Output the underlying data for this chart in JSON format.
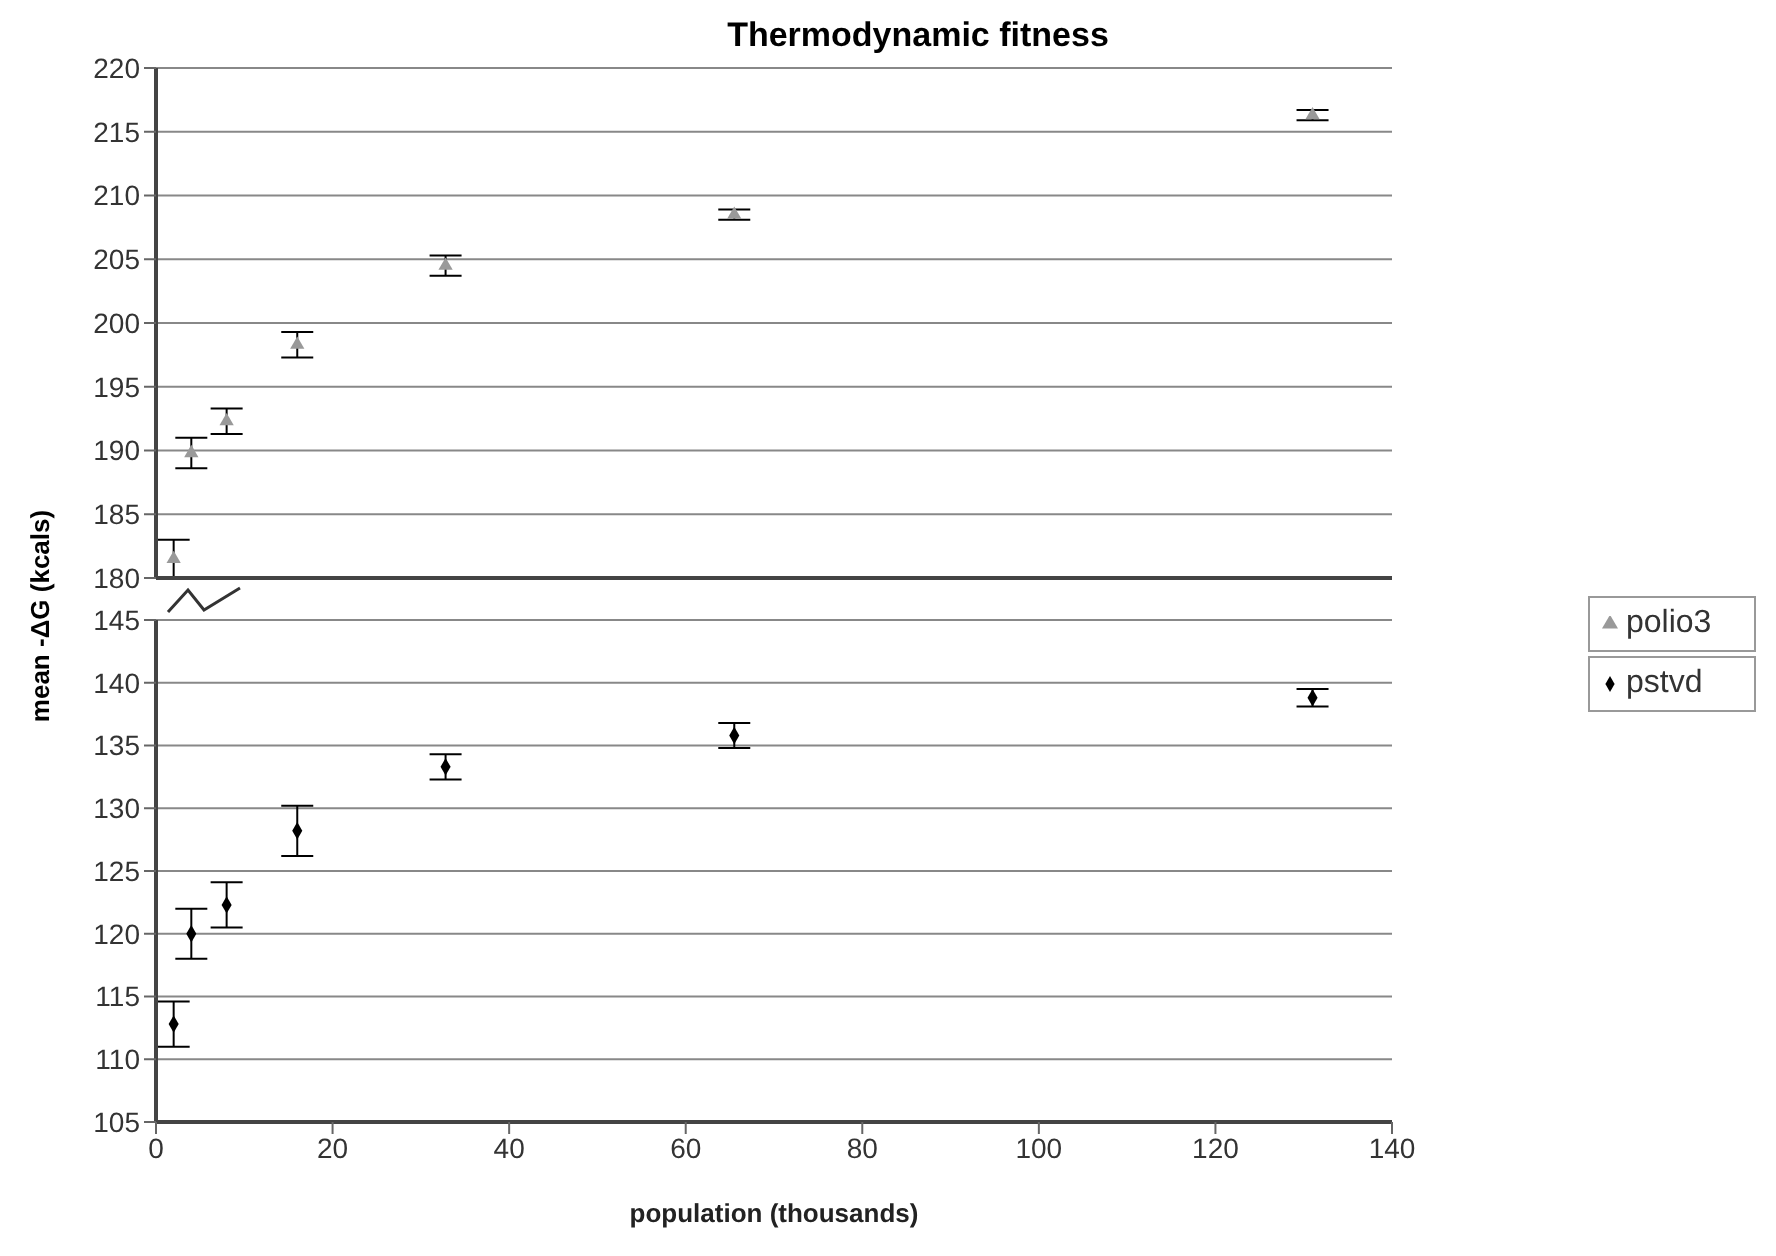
{
  "chart_data": [
    {
      "type": "scatter",
      "title": "Thermodynamic fitness",
      "x": [
        2,
        4,
        8,
        16,
        32.8,
        65.5,
        131
      ],
      "xlim": [
        0,
        140
      ],
      "xticks": [
        0,
        20,
        40,
        60,
        80,
        100,
        120,
        140
      ],
      "ylim": [
        180,
        220
      ],
      "yticks": [
        180,
        185,
        190,
        195,
        200,
        205,
        210,
        215,
        220
      ],
      "grid": "y",
      "legend": "bottom right",
      "marker": "triangle",
      "tick_labels": "y",
      "series": [
        {
          "name": "polio3",
          "color": "#999999",
          "values": [
            181.5,
            189.8,
            192.3,
            198.3,
            204.5,
            208.5,
            216.3
          ],
          "errors": [
            1.5,
            1.2,
            1,
            1,
            0.8,
            0.4,
            0.4
          ]
        }
      ]
    },
    {
      "type": "scatter",
      "xlabel": "population (thousands)",
      "ylabel": "mean -ΔG (kcals)",
      "x": [
        2,
        4,
        8,
        16,
        32.8,
        65.5,
        131
      ],
      "xlim": [
        0,
        140
      ],
      "xticks": [
        0,
        20,
        40,
        60,
        80,
        100,
        120,
        140
      ],
      "ylim": [
        105,
        145
      ],
      "yticks": [
        105,
        110,
        115,
        120,
        125,
        130,
        135,
        140,
        145
      ],
      "grid": "y",
      "legend": "top right",
      "marker": "diamond",
      "series": [
        {
          "name": "pstvd",
          "color": "#000000",
          "values": [
            112.8,
            120,
            122.3,
            128.2,
            133.3,
            135.8,
            138.8
          ],
          "errors": [
            1.8,
            2,
            1.8,
            2,
            1,
            1,
            0.7
          ]
        }
      ]
    }
  ]
}
